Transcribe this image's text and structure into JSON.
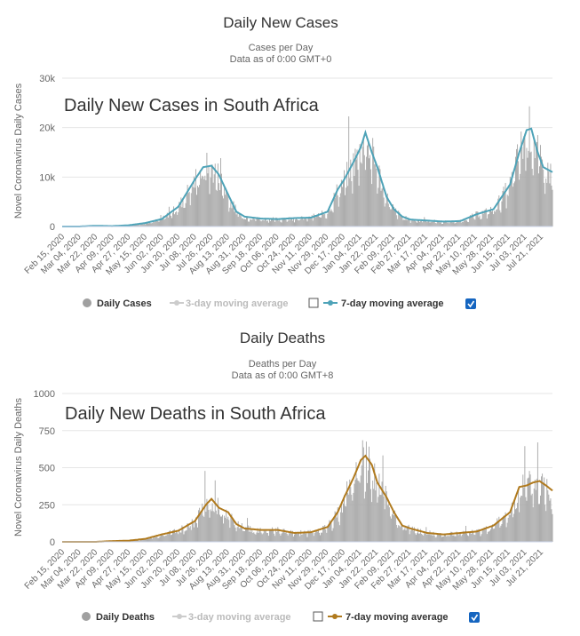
{
  "chart_data": [
    {
      "type": "bar",
      "title": "Daily New Cases",
      "subtitle_line1": "Cases per Day",
      "subtitle_line2": "Data as of 0:00 GMT+0",
      "overlay_title": "Daily New Cases in South Africa",
      "ylabel": "Novel Coronavirus Daily Cases",
      "ylim": [
        0,
        30000
      ],
      "ytick_values": [
        0,
        10000,
        20000,
        30000
      ],
      "ytick_labels": [
        "0",
        "10k",
        "20k",
        "30k"
      ],
      "x_start": "2020-02-15",
      "x_end": "2021-07-31",
      "xtick_labels": [
        "Feb 15, 2020",
        "Mar 04, 2020",
        "Mar 22, 2020",
        "Apr 09, 2020",
        "Apr 27, 2020",
        "May 15, 2020",
        "Jun 02, 2020",
        "Jun 20, 2020",
        "Jul 08, 2020",
        "Jul 26, 2020",
        "Aug 13, 2020",
        "Aug 31, 2020",
        "Sep 18, 2020",
        "Oct 06, 2020",
        "Oct 24, 2020",
        "Nov 11, 2020",
        "Nov 29, 2020",
        "Dec 17, 2020",
        "Jan 04, 2021",
        "Jan 22, 2021",
        "Feb 09, 2021",
        "Feb 27, 2021",
        "Mar 17, 2021",
        "Apr 04, 2021",
        "Apr 22, 2021",
        "May 10, 2021",
        "May 28, 2021",
        "Jun 15, 2021",
        "Jul 03, 2021",
        "Jul 21, 2021"
      ],
      "bar_color": "#a8a8a8",
      "line_color": "#4ea3b8",
      "series": [
        {
          "name": "7-day moving average",
          "points": [
            [
              "2020-02-15",
              0
            ],
            [
              "2020-03-04",
              0
            ],
            [
              "2020-03-22",
              150
            ],
            [
              "2020-04-09",
              80
            ],
            [
              "2020-04-27",
              250
            ],
            [
              "2020-05-15",
              700
            ],
            [
              "2020-06-02",
              1500
            ],
            [
              "2020-06-20",
              4000
            ],
            [
              "2020-07-08",
              9500
            ],
            [
              "2020-07-17",
              12000
            ],
            [
              "2020-07-26",
              12300
            ],
            [
              "2020-08-03",
              10500
            ],
            [
              "2020-08-13",
              6500
            ],
            [
              "2020-08-22",
              3000
            ],
            [
              "2020-08-31",
              2000
            ],
            [
              "2020-09-18",
              1600
            ],
            [
              "2020-10-06",
              1500
            ],
            [
              "2020-10-24",
              1700
            ],
            [
              "2020-11-11",
              1800
            ],
            [
              "2020-11-29",
              3000
            ],
            [
              "2020-12-10",
              7500
            ],
            [
              "2020-12-17",
              9500
            ],
            [
              "2020-12-27",
              13000
            ],
            [
              "2021-01-04",
              16000
            ],
            [
              "2021-01-09",
              19000
            ],
            [
              "2021-01-16",
              15000
            ],
            [
              "2021-01-22",
              12000
            ],
            [
              "2021-02-01",
              6000
            ],
            [
              "2021-02-09",
              3500
            ],
            [
              "2021-02-18",
              2000
            ],
            [
              "2021-02-27",
              1400
            ],
            [
              "2021-03-17",
              1200
            ],
            [
              "2021-04-04",
              1000
            ],
            [
              "2021-04-22",
              1100
            ],
            [
              "2021-05-10",
              2500
            ],
            [
              "2021-05-28",
              3500
            ],
            [
              "2021-06-15",
              8500
            ],
            [
              "2021-06-25",
              15000
            ],
            [
              "2021-07-03",
              19500
            ],
            [
              "2021-07-08",
              19800
            ],
            [
              "2021-07-15",
              15000
            ],
            [
              "2021-07-21",
              12000
            ],
            [
              "2021-07-31",
              11000
            ]
          ]
        }
      ],
      "legend": {
        "items": [
          {
            "label": "Daily Cases",
            "marker": "dot",
            "enabled": true
          },
          {
            "label": "3-day moving average",
            "marker": "line",
            "enabled": false,
            "checked": false
          },
          {
            "label": "7-day moving average",
            "marker": "line",
            "enabled": true,
            "checked": true
          }
        ]
      }
    },
    {
      "type": "bar",
      "title": "Daily Deaths",
      "subtitle_line1": "Deaths per Day",
      "subtitle_line2": "Data as of 0:00 GMT+8",
      "overlay_title": "Daily New Deaths in South Africa",
      "ylabel": "Novel Coronavirus Daily Deaths",
      "ylim": [
        0,
        1000
      ],
      "ytick_values": [
        0,
        250,
        500,
        750,
        1000
      ],
      "ytick_labels": [
        "0",
        "250",
        "500",
        "750",
        "1000"
      ],
      "x_start": "2020-02-15",
      "x_end": "2021-07-31",
      "xtick_labels": [
        "Feb 15, 2020",
        "Mar 04, 2020",
        "Mar 22, 2020",
        "Apr 09, 2020",
        "Apr 27, 2020",
        "May 15, 2020",
        "Jun 02, 2020",
        "Jun 20, 2020",
        "Jul 08, 2020",
        "Jul 26, 2020",
        "Aug 13, 2020",
        "Aug 31, 2020",
        "Sep 18, 2020",
        "Oct 06, 2020",
        "Oct 24, 2020",
        "Nov 11, 2020",
        "Nov 29, 2020",
        "Dec 17, 2020",
        "Jan 04, 2021",
        "Jan 22, 2021",
        "Feb 09, 2021",
        "Feb 27, 2021",
        "Mar 17, 2021",
        "Apr 04, 2021",
        "Apr 22, 2021",
        "May 10, 2021",
        "May 28, 2021",
        "Jun 15, 2021",
        "Jul 03, 2021",
        "Jul 21, 2021"
      ],
      "bar_color": "#a8a8a8",
      "line_color": "#b07a1e",
      "series": [
        {
          "name": "7-day moving average",
          "points": [
            [
              "2020-02-15",
              0
            ],
            [
              "2020-03-22",
              0
            ],
            [
              "2020-04-09",
              5
            ],
            [
              "2020-04-27",
              8
            ],
            [
              "2020-05-15",
              20
            ],
            [
              "2020-06-02",
              50
            ],
            [
              "2020-06-20",
              75
            ],
            [
              "2020-07-08",
              140
            ],
            [
              "2020-07-20",
              250
            ],
            [
              "2020-07-26",
              290
            ],
            [
              "2020-08-03",
              230
            ],
            [
              "2020-08-13",
              200
            ],
            [
              "2020-08-22",
              120
            ],
            [
              "2020-08-31",
              90
            ],
            [
              "2020-09-18",
              80
            ],
            [
              "2020-10-06",
              80
            ],
            [
              "2020-10-24",
              60
            ],
            [
              "2020-11-11",
              65
            ],
            [
              "2020-11-29",
              100
            ],
            [
              "2020-12-10",
              200
            ],
            [
              "2020-12-17",
              300
            ],
            [
              "2020-12-27",
              430
            ],
            [
              "2021-01-04",
              550
            ],
            [
              "2021-01-09",
              580
            ],
            [
              "2021-01-16",
              520
            ],
            [
              "2021-01-22",
              400
            ],
            [
              "2021-02-01",
              300
            ],
            [
              "2021-02-09",
              200
            ],
            [
              "2021-02-18",
              110
            ],
            [
              "2021-02-27",
              90
            ],
            [
              "2021-03-17",
              60
            ],
            [
              "2021-04-04",
              50
            ],
            [
              "2021-04-22",
              60
            ],
            [
              "2021-05-10",
              70
            ],
            [
              "2021-05-28",
              110
            ],
            [
              "2021-06-15",
              200
            ],
            [
              "2021-06-25",
              370
            ],
            [
              "2021-07-03",
              380
            ],
            [
              "2021-07-10",
              400
            ],
            [
              "2021-07-17",
              410
            ],
            [
              "2021-07-24",
              380
            ],
            [
              "2021-07-31",
              345
            ]
          ]
        }
      ],
      "legend": {
        "items": [
          {
            "label": "Daily Deaths",
            "marker": "dot",
            "enabled": true
          },
          {
            "label": "3-day moving average",
            "marker": "line",
            "enabled": false,
            "checked": false
          },
          {
            "label": "7-day moving average",
            "marker": "line",
            "enabled": true,
            "checked": true
          }
        ]
      }
    }
  ],
  "colors": {
    "checkbox_checked": "#1565c0",
    "disabled_text": "#bbbbbb",
    "axis_text": "#666666",
    "grid": "#e6e6e6"
  }
}
